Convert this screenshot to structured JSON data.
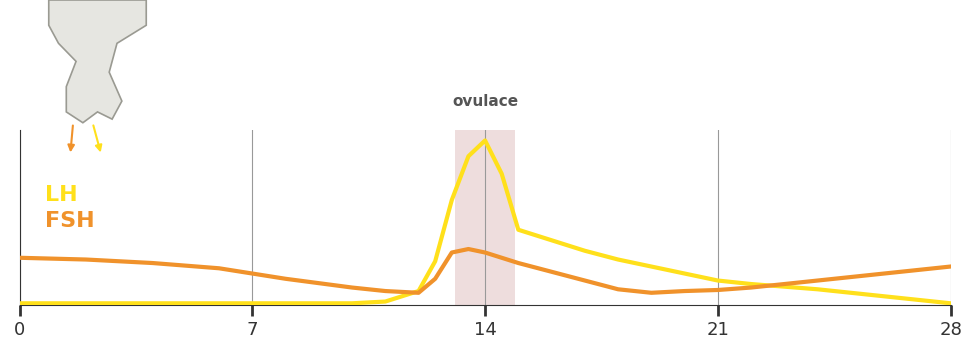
{
  "chart_data": {
    "type": "line",
    "x": [
      0,
      2,
      4,
      6,
      7,
      8,
      10,
      11,
      12,
      12.5,
      13,
      13.5,
      14,
      14.5,
      15,
      16,
      17,
      18,
      19,
      20,
      21,
      22,
      24,
      26,
      28
    ],
    "series": [
      {
        "name": "LH",
        "color": "#ffe01b",
        "values": [
          1,
          1,
          1,
          1,
          1,
          1,
          1,
          2,
          8,
          25,
          60,
          85,
          94,
          75,
          43,
          37,
          31,
          26,
          22,
          18,
          14,
          12,
          9,
          5,
          1
        ]
      },
      {
        "name": "FSH",
        "color": "#f0922b",
        "values": [
          27,
          26,
          24,
          21,
          18,
          15,
          10,
          8,
          7,
          15,
          30,
          32,
          30,
          27,
          24,
          19,
          14,
          9,
          7,
          8,
          8.6,
          10,
          14,
          18,
          22
        ]
      }
    ],
    "xlim": [
      0,
      28
    ],
    "xticks": [
      0,
      7,
      14,
      21,
      28
    ],
    "ylim": [
      0,
      100
    ],
    "yticks": [],
    "tick_labels": "x",
    "grid": true,
    "ovulation": {
      "label": "ovulace",
      "x": 14,
      "span": [
        13.1,
        14.9
      ]
    }
  }
}
